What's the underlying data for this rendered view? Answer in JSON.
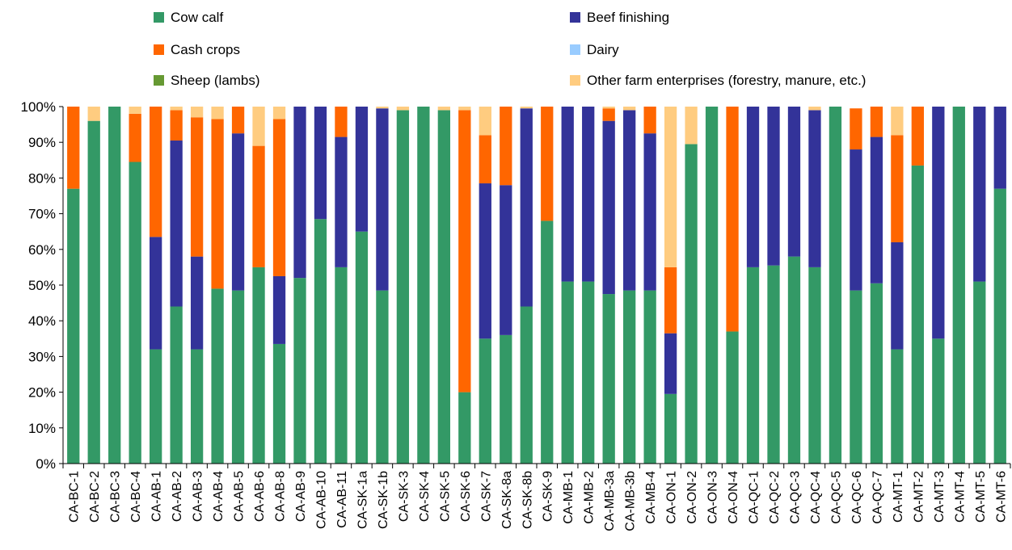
{
  "chart_data": {
    "type": "bar",
    "stacked": true,
    "normalized": true,
    "title": "",
    "xlabel": "",
    "ylabel": "",
    "ylim": [
      0,
      100
    ],
    "yticks": [
      "0%",
      "10%",
      "20%",
      "30%",
      "40%",
      "50%",
      "60%",
      "70%",
      "80%",
      "90%",
      "100%"
    ],
    "grid": false,
    "legend_position": "top",
    "categories": [
      "CA-BC-1",
      "CA-BC-2",
      "CA-BC-3",
      "CA-BC-4",
      "CA-AB-1",
      "CA-AB-2",
      "CA-AB-3",
      "CA-AB-4",
      "CA-AB-5",
      "CA-AB-6",
      "CA-AB-8",
      "CA-AB-9",
      "CA-AB-10",
      "CA-AB-11",
      "CA-SK-1a",
      "CA-SK-1b",
      "CA-SK-3",
      "CA-SK-4",
      "CA-SK-5",
      "CA-SK-6",
      "CA-SK-7",
      "CA-SK-8a",
      "CA-SK-8b",
      "CA-SK-9",
      "CA-MB-1",
      "CA-MB-2",
      "CA-MB-3a",
      "CA-MB-3b",
      "CA-MB-4",
      "CA-ON-1",
      "CA-ON-2",
      "CA-ON-3",
      "CA-ON-4",
      "CA-QC-1",
      "CA-QC-2",
      "CA-QC-3",
      "CA-QC-4",
      "CA-QC-5",
      "CA-QC-6",
      "CA-QC-7",
      "CA-MT-1",
      "CA-MT-2",
      "CA-MT-3",
      "CA-MT-4",
      "CA-MT-5",
      "CA-MT-6"
    ],
    "series": [
      {
        "name": "Cow calf",
        "color": "#339966",
        "values": [
          77,
          96,
          100,
          84.5,
          32,
          44,
          32,
          49,
          48.5,
          55,
          33.5,
          52,
          68.5,
          55,
          65,
          48.5,
          99,
          100,
          99,
          20,
          35,
          36,
          44,
          68,
          51,
          51,
          47.5,
          48.5,
          48.5,
          19.5,
          89.5,
          100,
          37,
          55,
          55.5,
          58,
          55,
          100,
          48.5,
          50.5,
          32,
          83.5,
          35,
          100,
          51,
          77
        ]
      },
      {
        "name": "Beef finishing",
        "color": "#333399",
        "values": [
          0,
          0,
          0,
          0,
          31.5,
          46.5,
          26,
          0,
          44,
          0,
          19,
          48,
          31.5,
          36.5,
          35,
          51,
          0,
          0,
          0,
          0,
          43.5,
          42,
          55.5,
          0,
          49,
          49,
          48.5,
          50.5,
          44,
          17,
          0,
          0,
          0,
          45,
          44.5,
          42,
          44,
          0,
          39.5,
          41,
          30,
          0,
          65,
          0,
          49,
          23
        ]
      },
      {
        "name": "Cash crops",
        "color": "#ff6600",
        "values": [
          23,
          0,
          0,
          13.5,
          36.5,
          8.5,
          39,
          47.5,
          7.5,
          34,
          44,
          0,
          0,
          8.5,
          0,
          0,
          0,
          0,
          0,
          79,
          13.5,
          22,
          0,
          32,
          0,
          0,
          3.5,
          0,
          7.5,
          18.5,
          0,
          0,
          63,
          0,
          0,
          0,
          0,
          0,
          11.5,
          8.5,
          30,
          16.5,
          0,
          0,
          0,
          0
        ]
      },
      {
        "name": "Dairy",
        "color": "#99ccff",
        "values": [
          0,
          0,
          0,
          0,
          0,
          0,
          0,
          0,
          0,
          0,
          0,
          0,
          0,
          0,
          0,
          0,
          0,
          0,
          0,
          0,
          0,
          0,
          0,
          0,
          0,
          0,
          0,
          0,
          0,
          0,
          0,
          0,
          0,
          0,
          0,
          0,
          0,
          0,
          0,
          0,
          0,
          0,
          0,
          0,
          0,
          0
        ]
      },
      {
        "name": "Sheep (lambs)",
        "color": "#669933",
        "values": [
          0,
          0,
          0,
          0,
          0,
          0,
          0,
          0,
          0,
          0,
          0,
          0,
          0,
          0,
          0,
          0,
          0,
          0,
          0,
          0,
          0,
          0,
          0,
          0,
          0,
          0,
          0,
          0,
          0,
          0,
          0,
          0,
          0,
          0,
          0,
          0,
          0,
          0,
          0,
          0,
          0,
          0,
          0,
          0,
          0,
          0
        ]
      },
      {
        "name": "Other farm enterprises (forestry, manure, etc.)",
        "color": "#ffcc80",
        "values": [
          0,
          4,
          0,
          2,
          0,
          1,
          3,
          3.5,
          0,
          11,
          3.5,
          0,
          0,
          0,
          0,
          0.5,
          1,
          0,
          1,
          1,
          8,
          0,
          0.5,
          0,
          0,
          0,
          0.5,
          1,
          0,
          45,
          10.5,
          0,
          0,
          0,
          0,
          0,
          1,
          0,
          0,
          0,
          8,
          0,
          0,
          0,
          0,
          0
        ]
      }
    ]
  }
}
